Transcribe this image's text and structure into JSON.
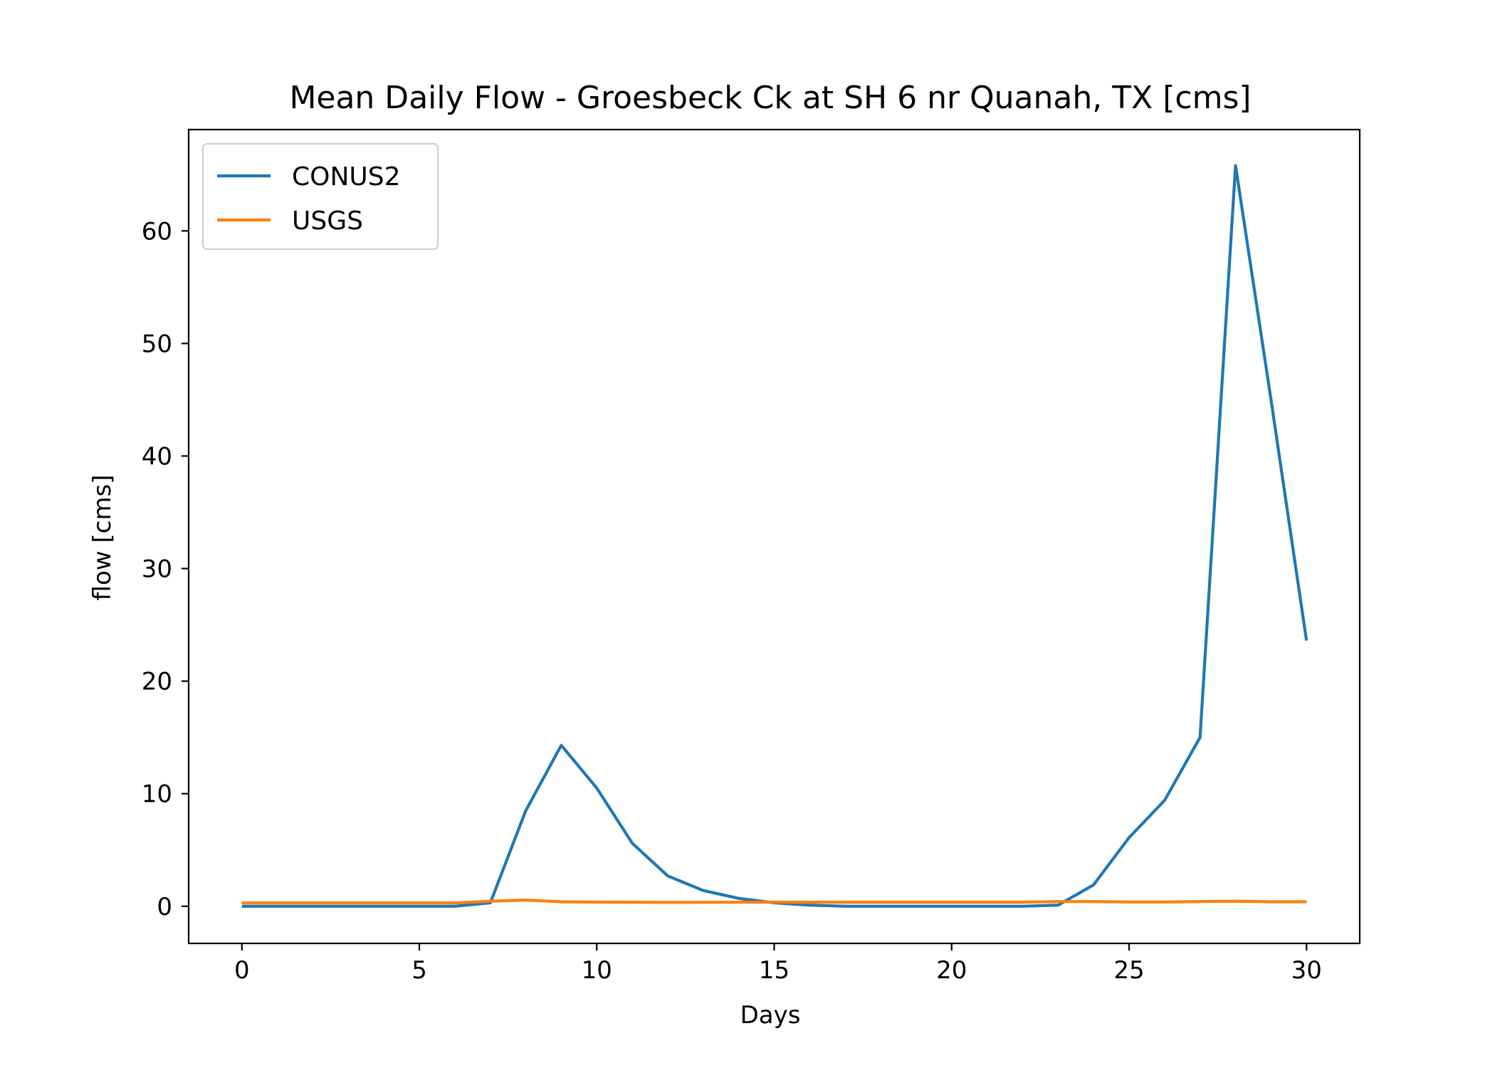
{
  "chart_data": {
    "type": "line",
    "title": "Mean Daily Flow - Groesbeck Ck at SH 6 nr Quanah, TX [cms]",
    "xlabel": "Days",
    "ylabel": "flow [cms]",
    "xlim": [
      -1.5,
      31.5
    ],
    "ylim": [
      -3.3,
      69.0
    ],
    "xticks": [
      0,
      5,
      10,
      15,
      20,
      25,
      30
    ],
    "yticks": [
      0,
      10,
      20,
      30,
      40,
      50,
      60
    ],
    "grid": false,
    "legend_position": "upper-left",
    "x": [
      0,
      1,
      2,
      3,
      4,
      5,
      6,
      7,
      8,
      9,
      10,
      11,
      12,
      13,
      14,
      15,
      16,
      17,
      18,
      19,
      20,
      21,
      22,
      23,
      24,
      25,
      26,
      27,
      28,
      29,
      30
    ],
    "series": [
      {
        "name": "CONUS2",
        "color": "#1f77b4",
        "values": [
          0.0,
          0.0,
          0.0,
          0.0,
          0.0,
          0.0,
          0.0,
          0.3,
          8.5,
          14.3,
          10.5,
          5.6,
          2.7,
          1.4,
          0.7,
          0.3,
          0.1,
          0.0,
          0.0,
          0.0,
          0.0,
          0.0,
          0.0,
          0.1,
          1.9,
          6.1,
          9.4,
          15.0,
          65.8,
          45.0,
          23.6
        ]
      },
      {
        "name": "USGS",
        "color": "#ff7f0e",
        "values": [
          0.3,
          0.3,
          0.3,
          0.3,
          0.3,
          0.3,
          0.3,
          0.45,
          0.55,
          0.4,
          0.37,
          0.36,
          0.34,
          0.35,
          0.36,
          0.36,
          0.36,
          0.36,
          0.36,
          0.36,
          0.36,
          0.36,
          0.36,
          0.42,
          0.42,
          0.38,
          0.38,
          0.42,
          0.45,
          0.4,
          0.4
        ]
      }
    ]
  }
}
